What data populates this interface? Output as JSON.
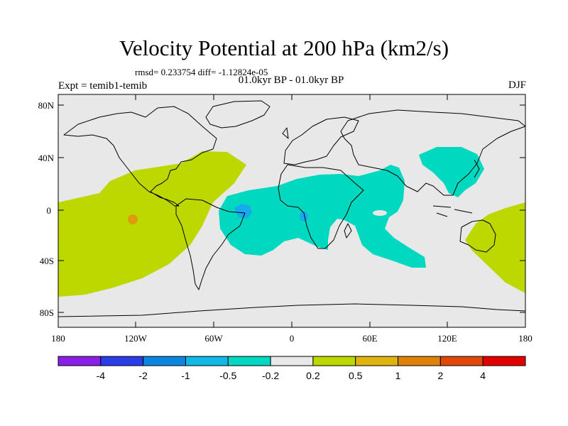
{
  "title": "Velocity Potential at 200 hPa (km2/s)",
  "stats": "rmsd= 0.233754  diff= -1.12824e-05",
  "period": "01.0kyr BP - 01.0kyr BP",
  "expt": "Expt = temib1-temib",
  "season": "DJF",
  "colors": {
    "land": "#e8e8e8",
    "coast": "#000000",
    "pos": "#bcd800",
    "neg": "#00d9bf",
    "neg2": "#18aaee",
    "pos2": "#e09a0e"
  },
  "map": {
    "y_ticks": [
      "80N",
      "40N",
      "0",
      "40S",
      "80S"
    ],
    "x_ticks": [
      "180",
      "120W",
      "60W",
      "0",
      "60E",
      "120E",
      "180"
    ]
  },
  "colorbar": {
    "colors": [
      "#8a20e8",
      "#2a3de6",
      "#0a86e0",
      "#10b8e8",
      "#00d9bf",
      "#e8e8e8",
      "#bcd800",
      "#e0b410",
      "#e0820a",
      "#e0480a",
      "#e00000"
    ],
    "labels": [
      "-4",
      "-2",
      "-1",
      "-0.5",
      "-0.2",
      "0.2",
      "0.5",
      "1",
      "2",
      "4"
    ]
  }
}
